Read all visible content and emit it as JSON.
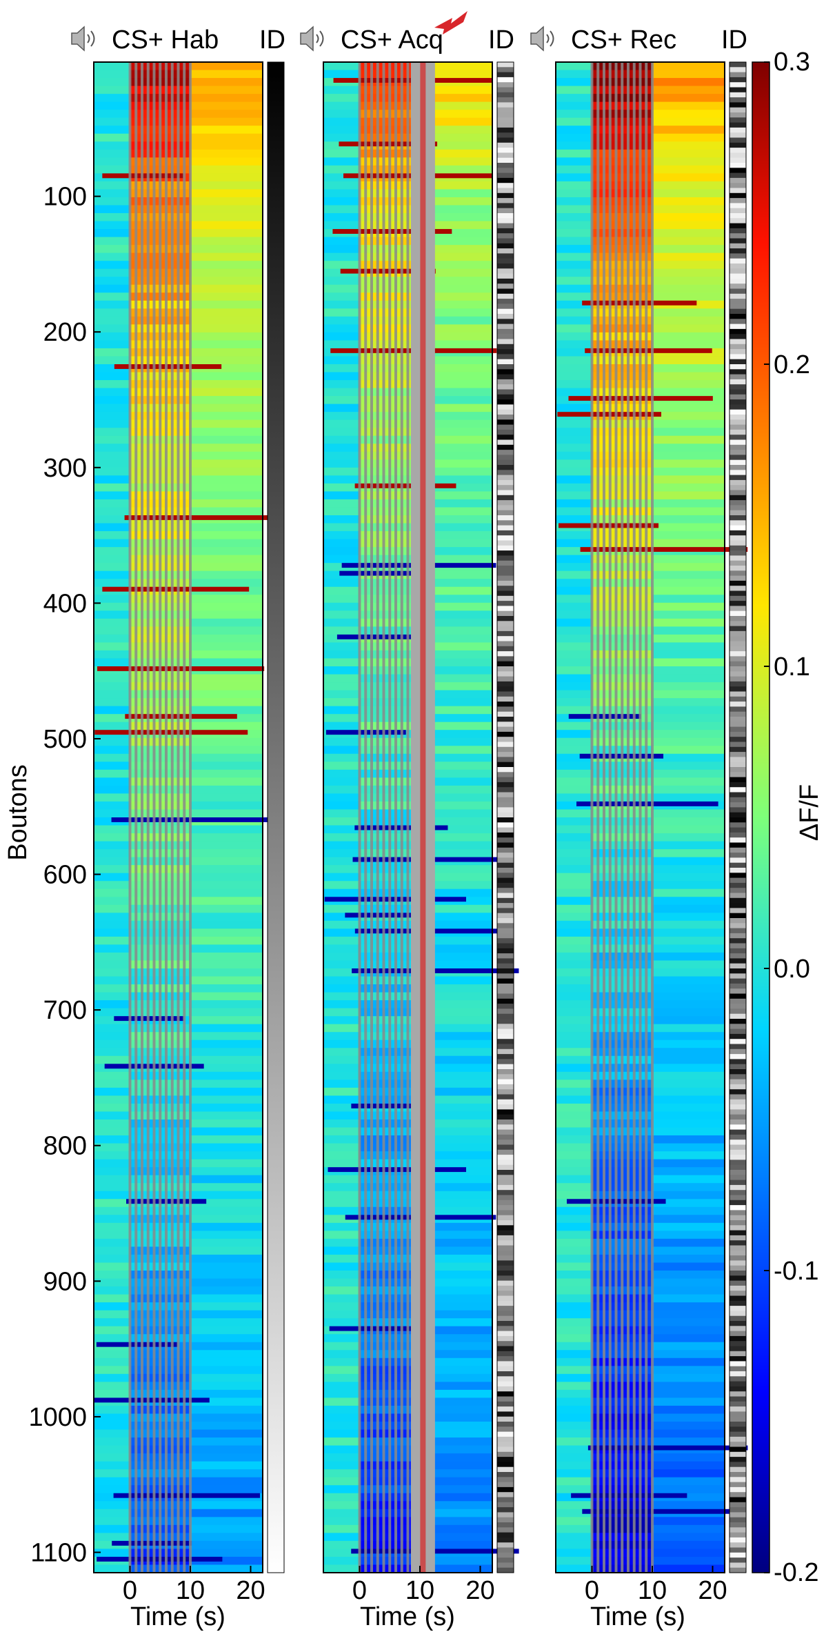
{
  "chart_data": [
    {
      "type": "heatmap",
      "title": "CS+ Hab",
      "id_label": "ID",
      "stimulus_icon": "speaker-icon",
      "shock_icon": null,
      "xlabel": "Time (s)",
      "x_ticks": [
        0,
        10,
        20
      ],
      "xlim": [
        -6,
        22
      ],
      "ylabel": "Boutons",
      "y_ticks": [
        100,
        200,
        300,
        400,
        500,
        600,
        700,
        800,
        900,
        1000,
        1100
      ],
      "ylim": [
        1,
        1115
      ],
      "id_bar": "gradient",
      "cs_pulse_window_s": [
        0,
        10
      ],
      "us_window_s": null,
      "response_by_bouton_rank": [
        {
          "bouton": 1,
          "dff_cs": 0.28
        },
        {
          "bouton": 100,
          "dff_cs": 0.18
        },
        {
          "bouton": 300,
          "dff_cs": 0.1
        },
        {
          "bouton": 600,
          "dff_cs": 0.04
        },
        {
          "bouton": 900,
          "dff_cs": -0.04
        },
        {
          "bouton": 1115,
          "dff_cs": -0.1
        }
      ]
    },
    {
      "type": "heatmap",
      "title": "CS+ Acq",
      "id_label": "ID",
      "stimulus_icon": "speaker-icon",
      "shock_icon": "shock-icon",
      "xlabel": "Time (s)",
      "x_ticks": [
        0,
        10,
        20
      ],
      "xlim": [
        -6,
        22
      ],
      "ylabel": "",
      "y_ticks": [],
      "ylim": [
        1,
        1115
      ],
      "id_bar": "shuffled",
      "cs_pulse_window_s": [
        0,
        10
      ],
      "us_window_s": [
        8.5,
        12.5
      ],
      "response_by_bouton_rank": [
        {
          "bouton": 1,
          "dff_cs": 0.25
        },
        {
          "bouton": 100,
          "dff_cs": 0.12
        },
        {
          "bouton": 300,
          "dff_cs": 0.06
        },
        {
          "bouton": 600,
          "dff_cs": 0.0
        },
        {
          "bouton": 900,
          "dff_cs": -0.06
        },
        {
          "bouton": 1115,
          "dff_cs": -0.12
        }
      ]
    },
    {
      "type": "heatmap",
      "title": "CS+ Rec",
      "id_label": "ID",
      "stimulus_icon": "speaker-icon",
      "shock_icon": null,
      "xlabel": "Time (s)",
      "x_ticks": [
        0,
        10,
        20
      ],
      "xlim": [
        -6,
        22
      ],
      "ylabel": "",
      "y_ticks": [],
      "ylim": [
        1,
        1115
      ],
      "id_bar": "shuffled",
      "cs_pulse_window_s": [
        0,
        10
      ],
      "us_window_s": null,
      "response_by_bouton_rank": [
        {
          "bouton": 1,
          "dff_cs": 0.3
        },
        {
          "bouton": 100,
          "dff_cs": 0.2
        },
        {
          "bouton": 300,
          "dff_cs": 0.1
        },
        {
          "bouton": 600,
          "dff_cs": 0.0
        },
        {
          "bouton": 900,
          "dff_cs": -0.1
        },
        {
          "bouton": 1115,
          "dff_cs": -0.16
        }
      ]
    }
  ],
  "colorbar": {
    "label": "ΔF/F",
    "range": [
      -0.2,
      0.3
    ],
    "ticks": [
      "0.3",
      "0.2",
      "0.1",
      "0.0",
      "-0.1",
      "-0.2"
    ],
    "tick_values": [
      0.3,
      0.2,
      0.1,
      0.0,
      -0.1,
      -0.2
    ],
    "colormap": "jet"
  }
}
